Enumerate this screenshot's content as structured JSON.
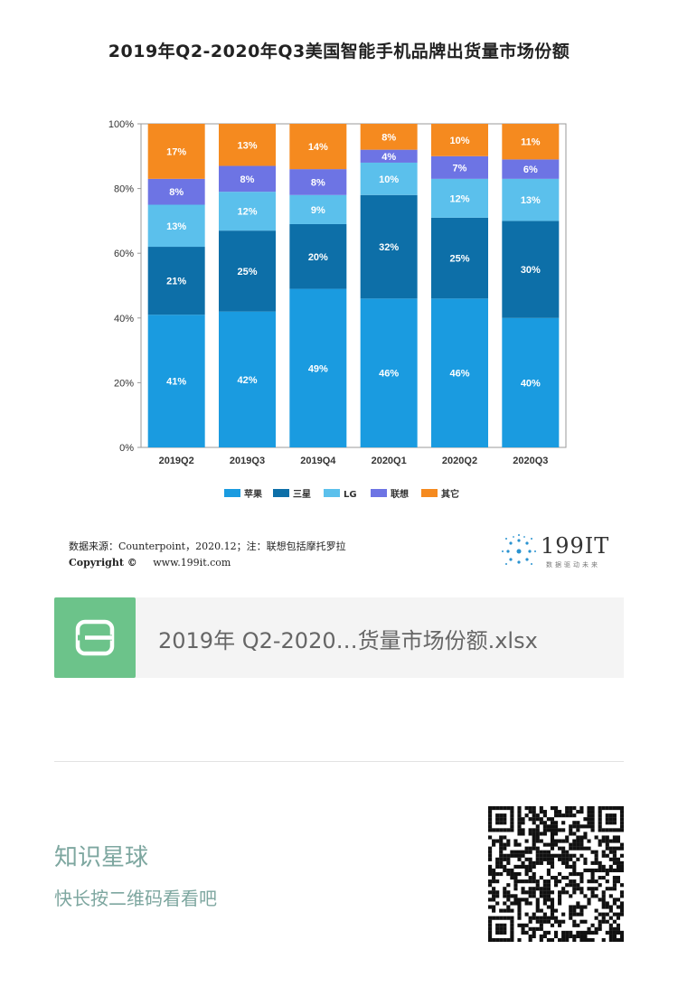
{
  "title": "2019年Q2-2020年Q3美国智能手机品牌出货量市场份额",
  "chart_data": {
    "type": "bar",
    "stacked": true,
    "categories": [
      "2019Q2",
      "2019Q3",
      "2019Q4",
      "2020Q1",
      "2020Q2",
      "2020Q3"
    ],
    "series": [
      {
        "name": "苹果",
        "color": "#1a9be0",
        "values": [
          41,
          42,
          49,
          46,
          46,
          40
        ]
      },
      {
        "name": "三星",
        "color": "#0d6fa8",
        "values": [
          21,
          25,
          20,
          32,
          25,
          30
        ]
      },
      {
        "name": "LG",
        "color": "#5bc0ec",
        "values": [
          13,
          12,
          9,
          10,
          12,
          13
        ]
      },
      {
        "name": "联想",
        "color": "#6d74e4",
        "values": [
          8,
          8,
          8,
          4,
          7,
          6
        ]
      },
      {
        "name": "其它",
        "color": "#f58a1f",
        "values": [
          17,
          13,
          14,
          8,
          10,
          11
        ]
      }
    ],
    "ylim": [
      0,
      100
    ],
    "yticks": [
      "0%",
      "20%",
      "40%",
      "60%",
      "80%",
      "100%"
    ],
    "legend_position": "bottom"
  },
  "footer": {
    "source": "数据来源：Counterpoint，2020.12；注：联想包括摩托罗拉",
    "copyright": "Copyright ©",
    "website": "www.199it.com",
    "logo_text": "199IT",
    "logo_sub": "数据驱动未来"
  },
  "attachment": {
    "icon": "spreadsheet-icon",
    "filename": "2019年 Q2-2020…货量市场份额.xlsx"
  },
  "promo": {
    "brand": "知识星球",
    "hint": "快长按二维码看看吧",
    "qr_icon": "qr-code-icon"
  }
}
